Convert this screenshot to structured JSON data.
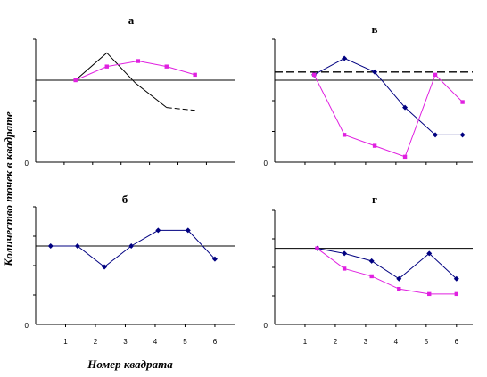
{
  "ylabel": "Количество точек в квадрате",
  "xlabel": "Номер квадрата",
  "series_colors": {
    "black": "#000080",
    "pink": "#e020e0",
    "reference": "#000000"
  },
  "chart_data": [
    {
      "type": "line",
      "title": "а",
      "y_zero_label": "0",
      "x_tick_labels": [],
      "reference_line": {
        "value": 0.3,
        "style": "solid"
      },
      "ylim": [
        0,
        1
      ],
      "series": [
        {
          "color": "black",
          "marker": "none",
          "points": [
            [
              0,
              0.3
            ],
            [
              1.4,
              0.3
            ],
            [
              2.5,
              0.4
            ],
            [
              3.5,
              0.29
            ],
            [
              4.6,
              0.2
            ],
            [
              5.6,
              0.19
            ]
          ],
          "dashed_last_segment": true
        },
        {
          "color": "pink",
          "marker": "square",
          "points": [
            [
              1.4,
              0.3
            ],
            [
              2.5,
              0.35
            ],
            [
              3.6,
              0.37
            ],
            [
              4.6,
              0.35
            ],
            [
              5.6,
              0.32
            ]
          ]
        }
      ]
    },
    {
      "type": "line",
      "title": "в",
      "y_zero_label": "0",
      "x_tick_labels": [],
      "reference_line": {
        "value": 0.33,
        "style": "dashed",
        "second_value": 0.3
      },
      "series": [
        {
          "color": "black",
          "marker": "diamond",
          "points": [
            [
              1.3,
              0.32
            ],
            [
              2.3,
              0.38
            ],
            [
              3.3,
              0.33
            ],
            [
              4.3,
              0.2
            ],
            [
              5.3,
              0.1
            ],
            [
              6.2,
              0.1
            ]
          ]
        },
        {
          "color": "pink",
          "marker": "square",
          "points": [
            [
              1.3,
              0.32
            ],
            [
              2.3,
              0.1
            ],
            [
              3.3,
              0.06
            ],
            [
              4.3,
              0.02
            ],
            [
              5.3,
              0.32
            ],
            [
              6.2,
              0.22
            ]
          ]
        }
      ]
    },
    {
      "type": "line",
      "title": "б",
      "y_zero_label": "0",
      "x_tick_labels": [
        "1",
        "2",
        "3",
        "4",
        "5",
        "6"
      ],
      "reference_line": {
        "value": 0.3,
        "style": "solid"
      },
      "series": [
        {
          "color": "black",
          "marker": "diamond",
          "points": [
            [
              0.5,
              0.3
            ],
            [
              1.4,
              0.3
            ],
            [
              2.3,
              0.22
            ],
            [
              3.2,
              0.3
            ],
            [
              4.1,
              0.36
            ],
            [
              5.1,
              0.36
            ],
            [
              6,
              0.25
            ]
          ]
        }
      ]
    },
    {
      "type": "line",
      "title": "г",
      "y_zero_label": "0",
      "x_tick_labels": [
        "1",
        "2",
        "3",
        "4",
        "5",
        "6"
      ],
      "reference_line": {
        "value": 0.3,
        "style": "solid"
      },
      "series": [
        {
          "color": "black",
          "marker": "diamond",
          "points": [
            [
              1.4,
              0.3
            ],
            [
              2.3,
              0.28
            ],
            [
              3.2,
              0.25
            ],
            [
              4.1,
              0.18
            ],
            [
              5.1,
              0.28
            ],
            [
              6,
              0.18
            ]
          ]
        },
        {
          "color": "pink",
          "marker": "square",
          "points": [
            [
              1.4,
              0.3
            ],
            [
              2.3,
              0.22
            ],
            [
              3.2,
              0.19
            ],
            [
              4.1,
              0.14
            ],
            [
              5.1,
              0.12
            ],
            [
              6,
              0.12
            ]
          ]
        }
      ]
    }
  ]
}
